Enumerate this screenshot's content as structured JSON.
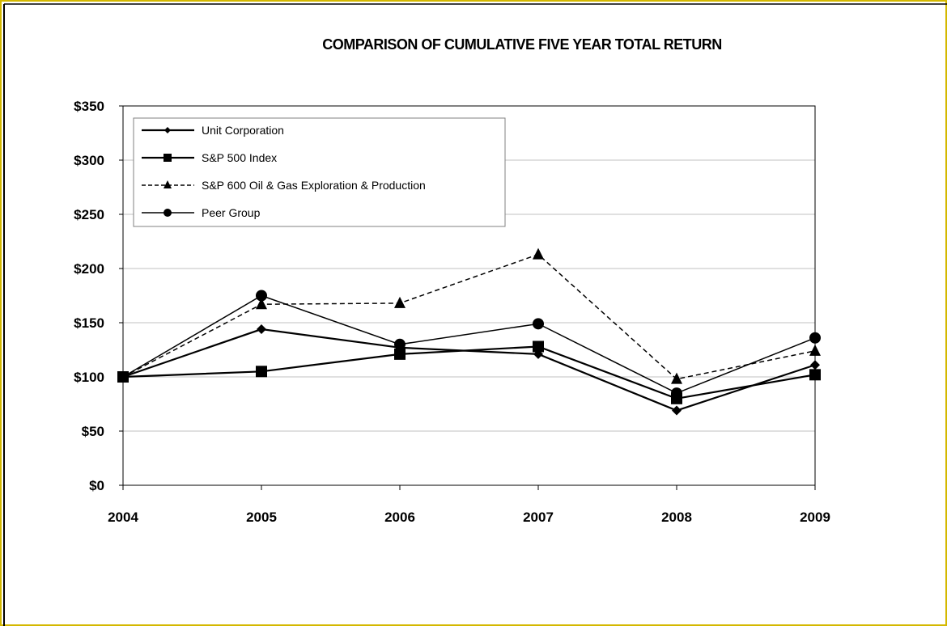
{
  "chart_data": {
    "type": "line",
    "title": "COMPARISON OF CUMULATIVE FIVE YEAR TOTAL RETURN",
    "xlabel": "",
    "ylabel": "",
    "x": [
      "2004",
      "2005",
      "2006",
      "2007",
      "2008",
      "2009"
    ],
    "ylim": [
      0,
      350
    ],
    "yticks": [
      "$0",
      "$50",
      "$100",
      "$150",
      "$200",
      "$250",
      "$300",
      "$350"
    ],
    "ytick_values": [
      0,
      50,
      100,
      150,
      200,
      250,
      300,
      350
    ],
    "grid": true,
    "legend_position": "top-left",
    "series": [
      {
        "name": "Unit Corporation",
        "values": [
          100,
          144,
          127,
          121,
          69,
          111
        ],
        "marker": "diamond",
        "line": "solid",
        "stroke_width": 2.2,
        "marker_size": 6
      },
      {
        "name": "S&P 500 Index",
        "values": [
          100,
          105,
          121,
          128,
          80,
          102
        ],
        "marker": "square",
        "line": "solid",
        "stroke_width": 2.2,
        "marker_size": 7
      },
      {
        "name": "S&P 600 Oil & Gas Exploration & Production",
        "values": [
          100,
          167,
          168,
          213,
          98,
          124
        ],
        "marker": "triangle",
        "line": "dashed",
        "stroke_width": 1.5,
        "marker_size": 7
      },
      {
        "name": "Peer Group",
        "values": [
          100,
          175,
          130,
          149,
          85,
          136
        ],
        "marker": "circle",
        "line": "solid",
        "stroke_width": 1.5,
        "marker_size": 7
      }
    ],
    "colors": {
      "line": "#000000",
      "grid": "#c0c0c0",
      "frame": "#000000",
      "page_border": "#d4b800"
    }
  }
}
